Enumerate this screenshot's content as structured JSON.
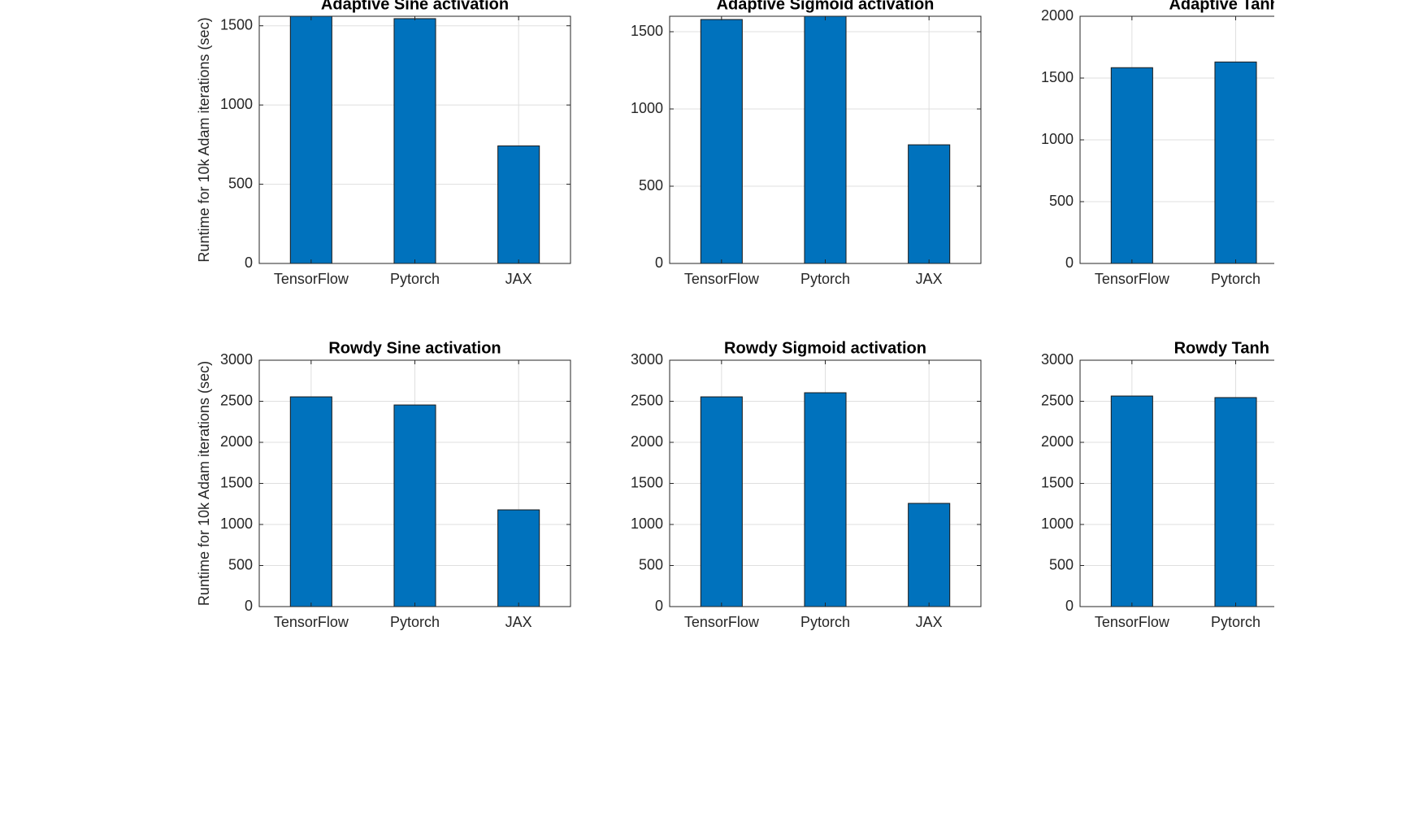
{
  "chart_data": [
    {
      "type": "bar",
      "title": "Adaptive Sine activation",
      "ylabel": "Runtime for 10k Adam iterations (sec)",
      "categories": [
        "TensorFlow",
        "Pytorch",
        "JAX"
      ],
      "values": [
        1560,
        1545,
        742
      ],
      "color": "#0072bd",
      "ylim": [
        0,
        1560
      ],
      "yticks": [
        0,
        500,
        1000,
        1500
      ],
      "grid": true
    },
    {
      "type": "bar",
      "title": "Adaptive Sigmoid activation",
      "categories": [
        "TensorFlow",
        "Pytorch",
        "JAX"
      ],
      "values": [
        1579,
        1600,
        768
      ],
      "color": "#0072bd",
      "ylim": [
        0,
        1600
      ],
      "yticks": [
        0,
        500,
        1000,
        1500
      ],
      "grid": true
    },
    {
      "type": "bar",
      "title": "Adaptive Tanh ac",
      "categories": [
        "TensorFlow",
        "Pytorch"
      ],
      "values": [
        1584,
        1630
      ],
      "color": "#0072bd",
      "ylim": [
        0,
        2000
      ],
      "yticks": [
        0,
        500,
        1000,
        1500,
        2000
      ],
      "grid": true
    },
    {
      "type": "bar",
      "title": "Rowdy Sine activation",
      "ylabel": "Runtime for 10k Adam iterations (sec)",
      "categories": [
        "TensorFlow",
        "Pytorch",
        "JAX"
      ],
      "values": [
        2554,
        2455,
        1178
      ],
      "color": "#0072bd",
      "ylim": [
        0,
        3000
      ],
      "yticks": [
        0,
        500,
        1000,
        1500,
        2000,
        2500,
        3000
      ],
      "grid": true
    },
    {
      "type": "bar",
      "title": "Rowdy Sigmoid activation",
      "categories": [
        "TensorFlow",
        "Pytorch",
        "JAX"
      ],
      "values": [
        2554,
        2604,
        1257
      ],
      "color": "#0072bd",
      "ylim": [
        0,
        3000
      ],
      "yticks": [
        0,
        500,
        1000,
        1500,
        2000,
        2500,
        3000
      ],
      "grid": true
    },
    {
      "type": "bar",
      "title": "Rowdy Tanh act",
      "categories": [
        "TensorFlow",
        "Pytorch"
      ],
      "values": [
        2564,
        2545
      ],
      "color": "#0072bd",
      "ylim": [
        0,
        3000
      ],
      "yticks": [
        0,
        500,
        1000,
        1500,
        2000,
        2500,
        3000
      ],
      "grid": true
    }
  ]
}
